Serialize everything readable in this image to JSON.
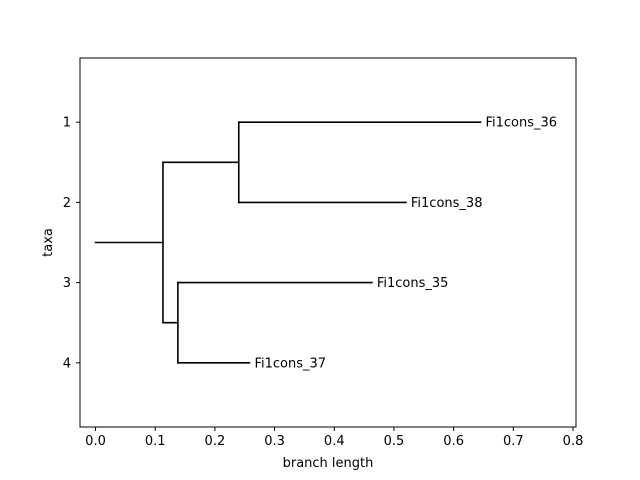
{
  "chart_data": {
    "type": "dendrogram",
    "title": "",
    "xlabel": "branch length",
    "ylabel": "taxa",
    "xlim": [
      -0.026,
      0.805
    ],
    "ylim": [
      4.8,
      0.2
    ],
    "grid": false,
    "xticks": [
      0.0,
      0.1,
      0.2,
      0.3,
      0.4,
      0.5,
      0.6,
      0.7,
      0.8
    ],
    "xtick_labels": [
      "0.0",
      "0.1",
      "0.2",
      "0.3",
      "0.4",
      "0.5",
      "0.6",
      "0.7",
      "0.8"
    ],
    "yticks": [
      1,
      2,
      3,
      4
    ],
    "ytick_labels": [
      "1",
      "2",
      "3",
      "4"
    ],
    "leaves": [
      {
        "name": "Fi1cons_36",
        "y": 1,
        "x": 0.645
      },
      {
        "name": "Fi1cons_38",
        "y": 2,
        "x": 0.52
      },
      {
        "name": "Fi1cons_35",
        "y": 3,
        "x": 0.463
      },
      {
        "name": "Fi1cons_37",
        "y": 4,
        "x": 0.258
      }
    ],
    "branches": [
      {
        "x1": 0.0,
        "x2": 0.113,
        "y1": 2.5,
        "y2": 2.5
      },
      {
        "x1": 0.113,
        "x2": 0.113,
        "y1": 1.5,
        "y2": 3.5
      },
      {
        "x1": 0.113,
        "x2": 0.24,
        "y1": 1.5,
        "y2": 1.5
      },
      {
        "x1": 0.24,
        "x2": 0.24,
        "y1": 1,
        "y2": 2
      },
      {
        "x1": 0.24,
        "x2": 0.645,
        "y1": 1,
        "y2": 1
      },
      {
        "x1": 0.24,
        "x2": 0.52,
        "y1": 2,
        "y2": 2
      },
      {
        "x1": 0.113,
        "x2": 0.138,
        "y1": 3.5,
        "y2": 3.5
      },
      {
        "x1": 0.138,
        "x2": 0.138,
        "y1": 3,
        "y2": 4
      },
      {
        "x1": 0.138,
        "x2": 0.463,
        "y1": 3,
        "y2": 3
      },
      {
        "x1": 0.138,
        "x2": 0.258,
        "y1": 4,
        "y2": 4
      }
    ],
    "colors": {
      "line": "#000000",
      "axes": "#000000",
      "background": "#ffffff"
    }
  }
}
